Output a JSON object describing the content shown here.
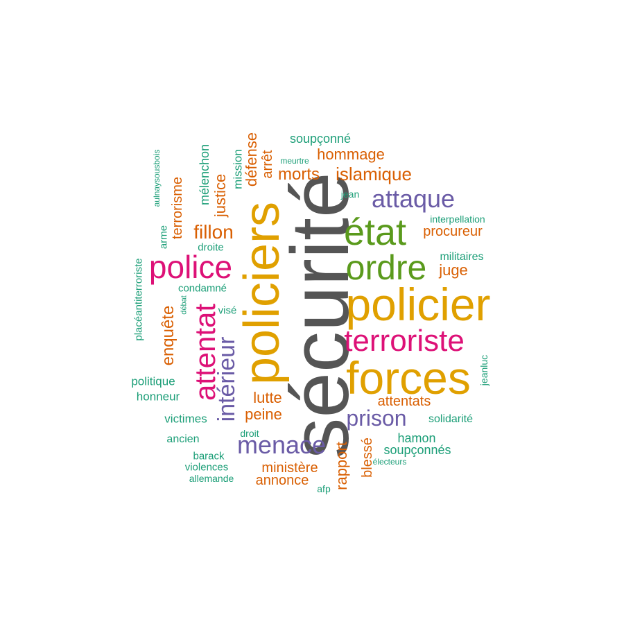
{
  "colors": {
    "dark_gray": "#555555",
    "gold": "#E0A000",
    "green": "#5A9A1C",
    "magenta": "#DD1177",
    "purple": "#6A5BA6",
    "orange": "#D95F02",
    "teal": "#1B9E77"
  },
  "words": [
    {
      "text": "sécurité",
      "color": "#555555"
    },
    {
      "text": "policiers",
      "color": "#E0A000"
    },
    {
      "text": "policier",
      "color": "#E0A000"
    },
    {
      "text": "forces",
      "color": "#E0A000"
    },
    {
      "text": "état",
      "color": "#5A9A1C"
    },
    {
      "text": "ordre",
      "color": "#5A9A1C"
    },
    {
      "text": "police",
      "color": "#DD1177"
    },
    {
      "text": "terroriste",
      "color": "#DD1177"
    },
    {
      "text": "attentat",
      "color": "#DD1177"
    },
    {
      "text": "attaque",
      "color": "#6A5BA6"
    },
    {
      "text": "menace",
      "color": "#6A5BA6"
    },
    {
      "text": "intérieur",
      "color": "#6A5BA6"
    },
    {
      "text": "prison",
      "color": "#6A5BA6"
    },
    {
      "text": "islamique",
      "color": "#D95F02"
    },
    {
      "text": "morts",
      "color": "#D95F02"
    },
    {
      "text": "hommage",
      "color": "#D95F02"
    },
    {
      "text": "fillon",
      "color": "#D95F02"
    },
    {
      "text": "défense",
      "color": "#D95F02"
    },
    {
      "text": "arrêt",
      "color": "#D95F02"
    },
    {
      "text": "justice",
      "color": "#D95F02"
    },
    {
      "text": "terrorisme",
      "color": "#D95F02"
    },
    {
      "text": "enquête",
      "color": "#D95F02"
    },
    {
      "text": "procureur",
      "color": "#D95F02"
    },
    {
      "text": "juge",
      "color": "#D95F02"
    },
    {
      "text": "attentats",
      "color": "#D95F02"
    },
    {
      "text": "lutte",
      "color": "#D95F02"
    },
    {
      "text": "peine",
      "color": "#D95F02"
    },
    {
      "text": "ministère",
      "color": "#D95F02"
    },
    {
      "text": "annonce",
      "color": "#D95F02"
    },
    {
      "text": "rapport",
      "color": "#D95F02"
    },
    {
      "text": "blessé",
      "color": "#D95F02"
    },
    {
      "text": "soupçonné",
      "color": "#1B9E77"
    },
    {
      "text": "meurtre",
      "color": "#1B9E77"
    },
    {
      "text": "mission",
      "color": "#1B9E77"
    },
    {
      "text": "mélenchon",
      "color": "#1B9E77"
    },
    {
      "text": "aulnaysousbois",
      "color": "#1B9E77"
    },
    {
      "text": "arme",
      "color": "#1B9E77"
    },
    {
      "text": "droite",
      "color": "#1B9E77"
    },
    {
      "text": "jean",
      "color": "#1B9E77"
    },
    {
      "text": "interpellation",
      "color": "#1B9E77"
    },
    {
      "text": "militaires",
      "color": "#1B9E77"
    },
    {
      "text": "condamné",
      "color": "#1B9E77"
    },
    {
      "text": "débat",
      "color": "#1B9E77"
    },
    {
      "text": "visé",
      "color": "#1B9E77"
    },
    {
      "text": "placéantiterroriste",
      "color": "#1B9E77"
    },
    {
      "text": "politique",
      "color": "#1B9E77"
    },
    {
      "text": "honneur",
      "color": "#1B9E77"
    },
    {
      "text": "victimes",
      "color": "#1B9E77"
    },
    {
      "text": "ancien",
      "color": "#1B9E77"
    },
    {
      "text": "droit",
      "color": "#1B9E77"
    },
    {
      "text": "barack",
      "color": "#1B9E77"
    },
    {
      "text": "violences",
      "color": "#1B9E77"
    },
    {
      "text": "allemande",
      "color": "#1B9E77"
    },
    {
      "text": "afp",
      "color": "#1B9E77"
    },
    {
      "text": "jeanluc",
      "color": "#1B9E77"
    },
    {
      "text": "solidarité",
      "color": "#1B9E77"
    },
    {
      "text": "hamon",
      "color": "#1B9E77"
    },
    {
      "text": "soupçonnés",
      "color": "#1B9E77"
    },
    {
      "text": "électeurs",
      "color": "#1B9E77"
    }
  ]
}
